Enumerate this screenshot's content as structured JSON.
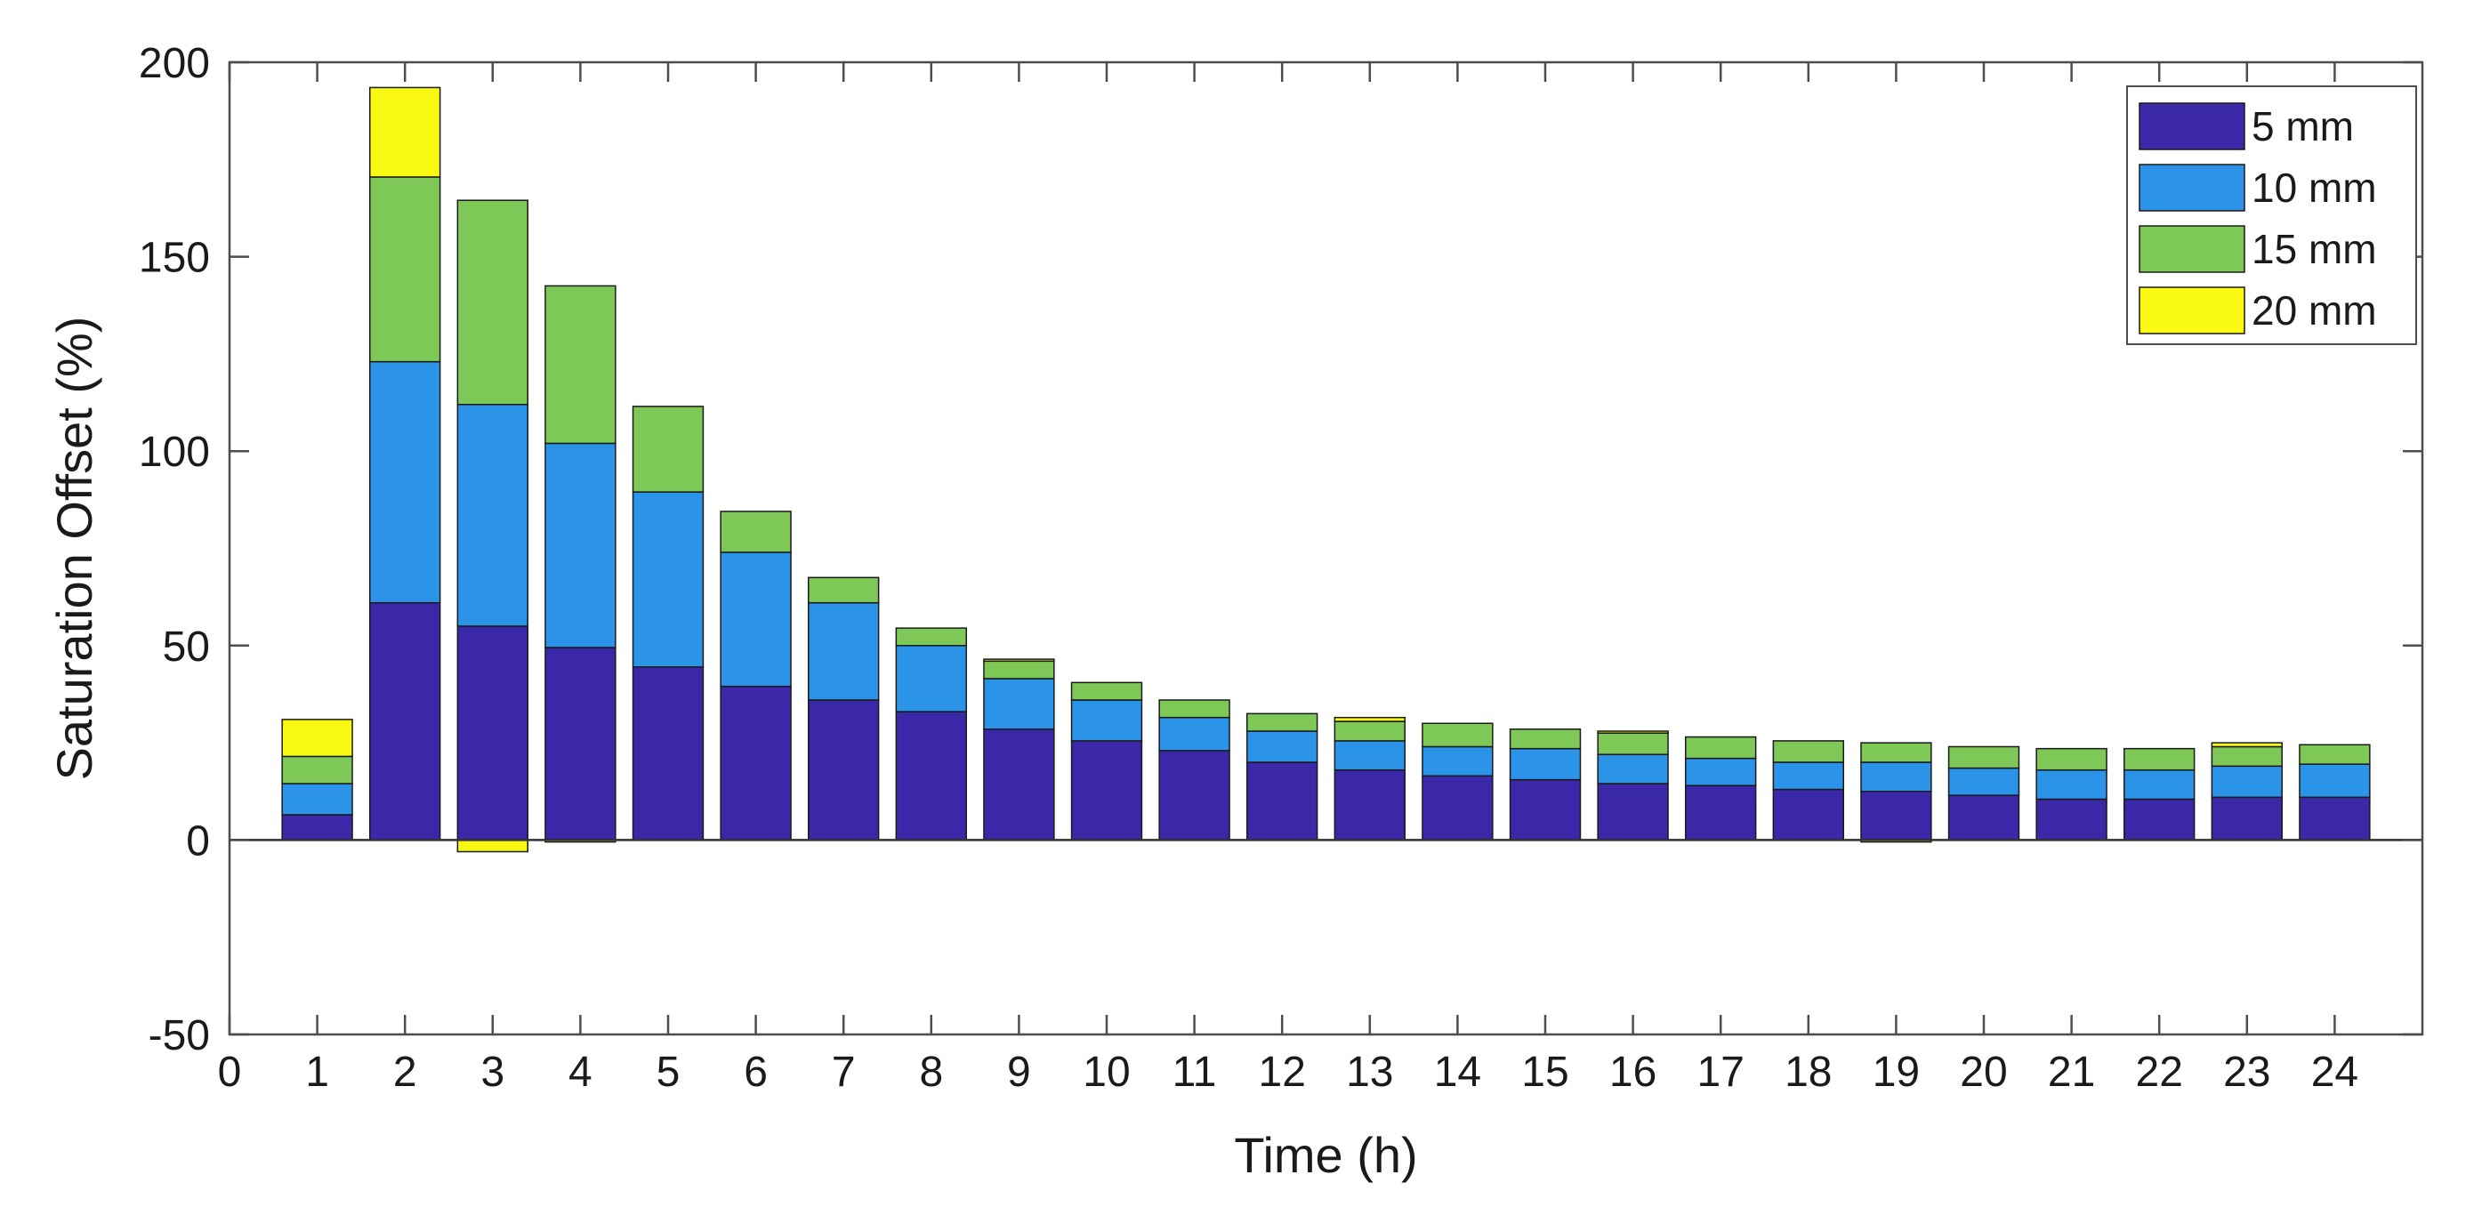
{
  "chart_data": {
    "type": "bar",
    "stacked": true,
    "xlabel": "Time (h)",
    "ylabel": "Saturation Offset (%)",
    "xlim": [
      0,
      25
    ],
    "ylim": [
      -50,
      200
    ],
    "x_ticks": [
      "0",
      "1",
      "2",
      "3",
      "4",
      "5",
      "6",
      "7",
      "8",
      "9",
      "10",
      "11",
      "12",
      "13",
      "14",
      "15",
      "16",
      "17",
      "18",
      "19",
      "20",
      "21",
      "22",
      "23",
      "24"
    ],
    "y_ticks": [
      "-50",
      "0",
      "50",
      "100",
      "150",
      "200"
    ],
    "categories": [
      1,
      2,
      3,
      4,
      5,
      6,
      7,
      8,
      9,
      10,
      11,
      12,
      13,
      14,
      15,
      16,
      17,
      18,
      19,
      20,
      21,
      22,
      23,
      24
    ],
    "legend_position": "top-right",
    "grid": false,
    "series": [
      {
        "name": "5 mm",
        "color": "#3a28a8",
        "values": [
          6.5,
          61,
          55,
          49.5,
          44.5,
          39.5,
          36,
          33,
          28.5,
          25.5,
          23,
          20,
          18,
          16.5,
          15.5,
          14.5,
          14,
          13,
          12.5,
          11.5,
          10.5,
          10.5,
          11,
          11
        ]
      },
      {
        "name": "10 mm",
        "color": "#2b94e8",
        "values": [
          8,
          62,
          57,
          52.5,
          45,
          34.5,
          25,
          17,
          13,
          10.5,
          8.5,
          8,
          7.5,
          7.5,
          8,
          7.5,
          7,
          7,
          7.5,
          7,
          7.5,
          7.5,
          8,
          8.5
        ]
      },
      {
        "name": "15 mm",
        "color": "#7ec857",
        "values": [
          7,
          47.5,
          52.5,
          40.5,
          22,
          10.5,
          6.5,
          4.5,
          4.5,
          4.5,
          4.5,
          4.5,
          5,
          6,
          5,
          5.5,
          5.5,
          5.5,
          5,
          5.5,
          5.5,
          5.5,
          5,
          5
        ]
      },
      {
        "name": "20 mm",
        "color": "#f9f914",
        "values": [
          9.5,
          23,
          -3,
          -0.5,
          0,
          0,
          0,
          0,
          0.5,
          0,
          0,
          0,
          1,
          0,
          0,
          0.5,
          0,
          0,
          -0.5,
          0,
          0,
          0,
          1,
          0
        ]
      }
    ]
  }
}
